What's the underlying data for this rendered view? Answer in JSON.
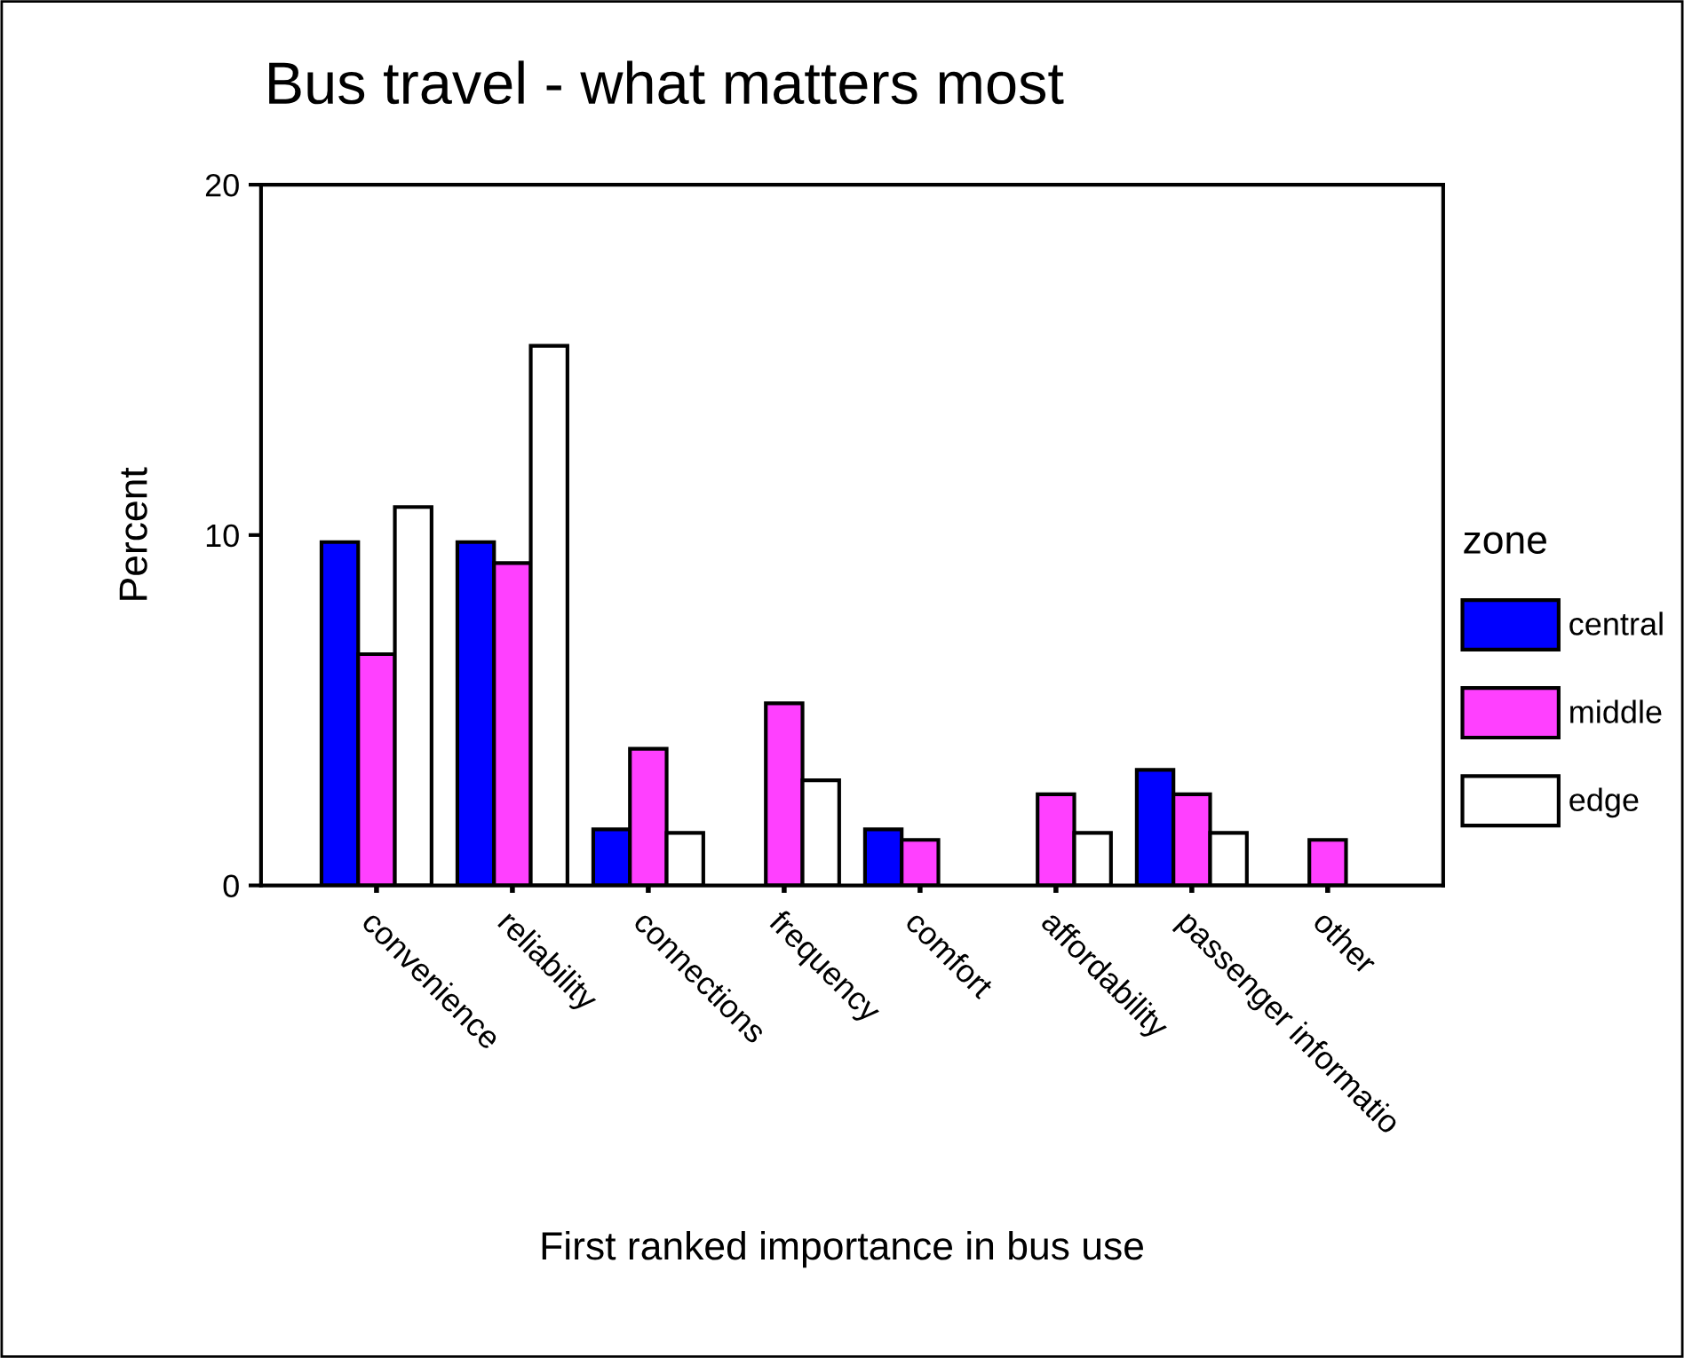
{
  "chart_data": {
    "type": "bar",
    "title": "Bus travel - what matters most",
    "xlabel": "First ranked importance in bus use",
    "ylabel": "Percent",
    "legend_title": "zone",
    "categories": [
      "convenience",
      "reliability",
      "connections",
      "frequency",
      "comfort",
      "affordability",
      "passenger informatio",
      "other"
    ],
    "series": [
      {
        "name": "central",
        "color": "#0000ff",
        "values": [
          9.8,
          9.8,
          1.6,
          null,
          1.6,
          null,
          3.3,
          null
        ]
      },
      {
        "name": "middle",
        "color": "#ff40ff",
        "values": [
          6.6,
          9.2,
          3.9,
          5.2,
          1.3,
          2.6,
          2.6,
          1.3
        ]
      },
      {
        "name": "edge",
        "color": "#ffffff",
        "values": [
          10.8,
          15.4,
          1.5,
          3.0,
          null,
          1.5,
          1.5,
          null
        ]
      }
    ],
    "ylim": [
      0,
      20
    ],
    "yticks": [
      0,
      10,
      20
    ],
    "grid": false,
    "legend": "right"
  }
}
